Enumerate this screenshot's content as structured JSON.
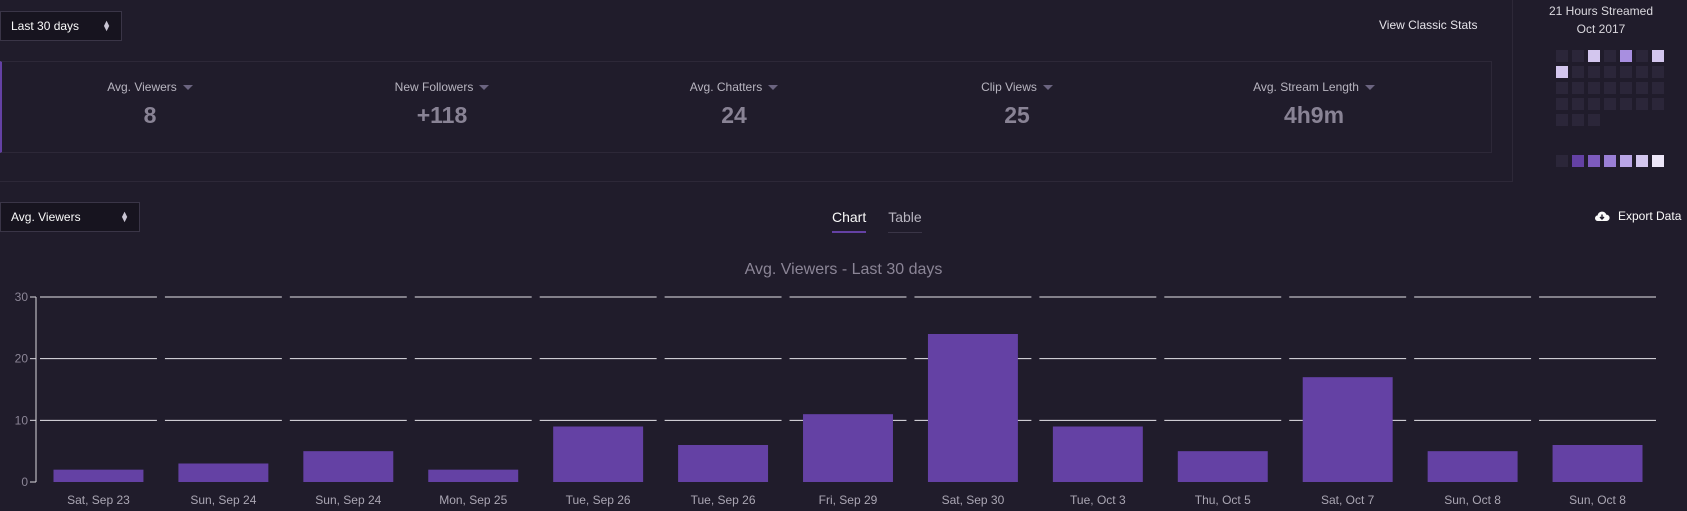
{
  "range_select": {
    "value": "Last 30 days"
  },
  "classic_link": "View Classic Stats",
  "stats": [
    {
      "label": "Avg. Viewers",
      "value": "8"
    },
    {
      "label": "New Followers",
      "value": "+118"
    },
    {
      "label": "Avg. Chatters",
      "value": "24"
    },
    {
      "label": "Clip Views",
      "value": "25"
    },
    {
      "label": "Avg. Stream Length",
      "value": "4h9m"
    }
  ],
  "streamed": {
    "hours": "21 Hours Streamed",
    "month": "Oct 2017"
  },
  "calendar_colors": {
    "empty": "#2b2639",
    "light": "#d3c6ee",
    "mid": "#a88fe0"
  },
  "calendar_active_days": [
    3,
    5,
    7,
    8
  ],
  "legend_colors": [
    "#2b2639",
    "#6441a4",
    "#7d5bbe",
    "#9a7fd6",
    "#b9a5e6",
    "#d3c6ee",
    "#ece6f8"
  ],
  "metric_select": {
    "value": "Avg. Viewers"
  },
  "tabs": [
    {
      "label": "Chart",
      "active": true
    },
    {
      "label": "Table",
      "active": false
    }
  ],
  "export": {
    "label": "Export Data",
    "icon": "cloud-download-icon"
  },
  "accent_color": "#6441a4",
  "chart_data": {
    "type": "bar",
    "title": "Avg. Viewers - Last 30 days",
    "categories": [
      "Sat, Sep 23",
      "Sun, Sep 24",
      "Sun, Sep 24",
      "Mon, Sep 25",
      "Tue, Sep 26",
      "Tue, Sep 26",
      "Fri, Sep 29",
      "Sat, Sep 30",
      "Tue, Oct 3",
      "Thu, Oct 5",
      "Sat, Oct 7",
      "Sun, Oct 8",
      "Sun, Oct 8"
    ],
    "values": [
      2,
      3,
      5,
      2,
      9,
      6,
      11,
      24,
      9,
      5,
      17,
      5,
      6
    ],
    "ylim": [
      0,
      30
    ],
    "yticks": [
      0,
      10,
      20,
      30
    ],
    "grid": true,
    "bar_color": "#6441a4"
  }
}
